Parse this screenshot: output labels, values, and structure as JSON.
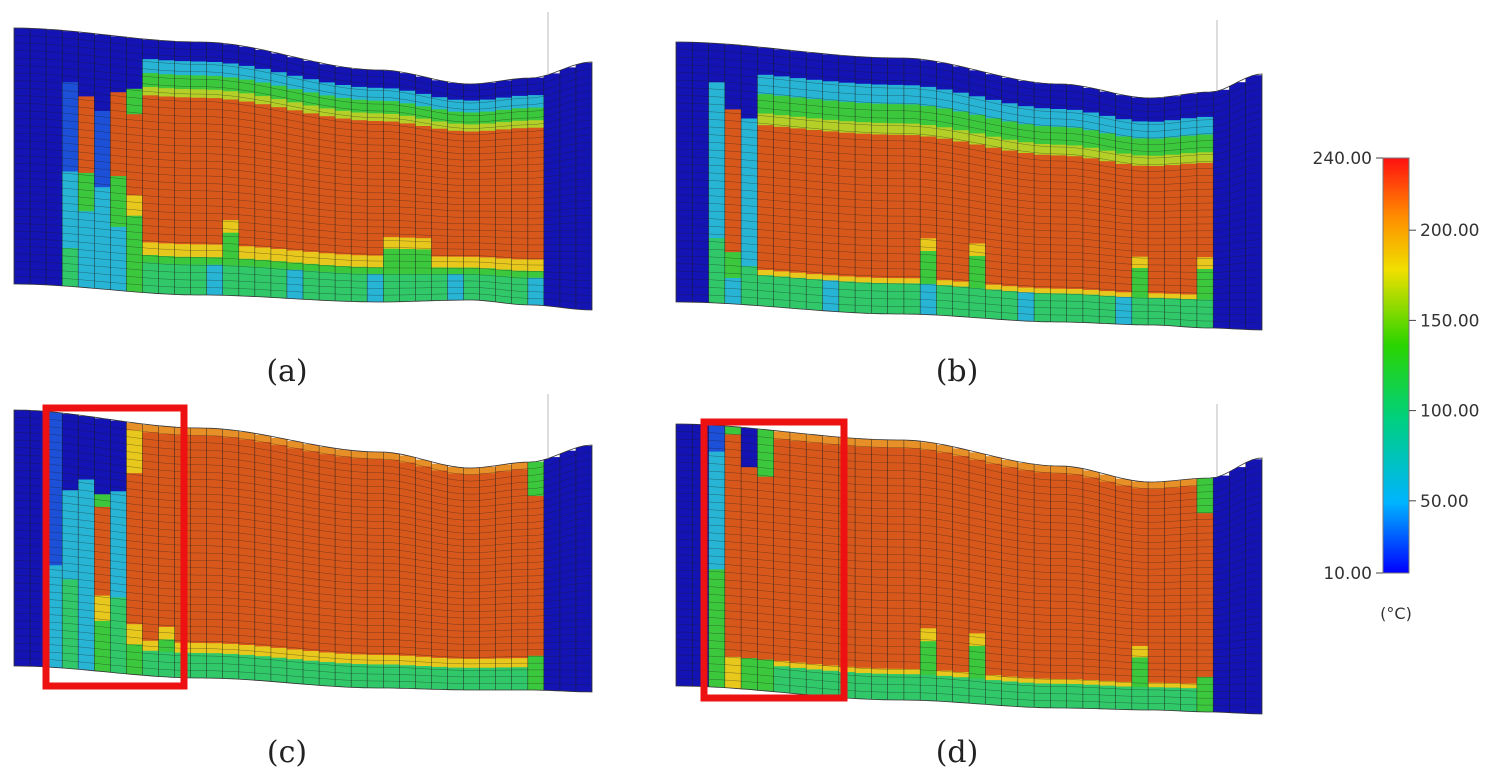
{
  "panels": [
    {
      "caption": "(a)",
      "highlight": false
    },
    {
      "caption": "(b)",
      "highlight": false
    },
    {
      "caption": "(c)",
      "highlight": true
    },
    {
      "caption": "(d)",
      "highlight": true
    }
  ],
  "colorbar": {
    "min": 10,
    "max": 240,
    "tick_values": [
      240,
      200,
      150,
      100,
      50,
      10
    ],
    "tick_labels": [
      "240.00",
      "200.00",
      "150.00",
      "100.00",
      "50.00",
      "10.00"
    ],
    "unit": "(°C)"
  },
  "colors": {
    "cold": "#1414b4",
    "hot": "#d8581c",
    "highlight_box": "#ee1111"
  }
}
